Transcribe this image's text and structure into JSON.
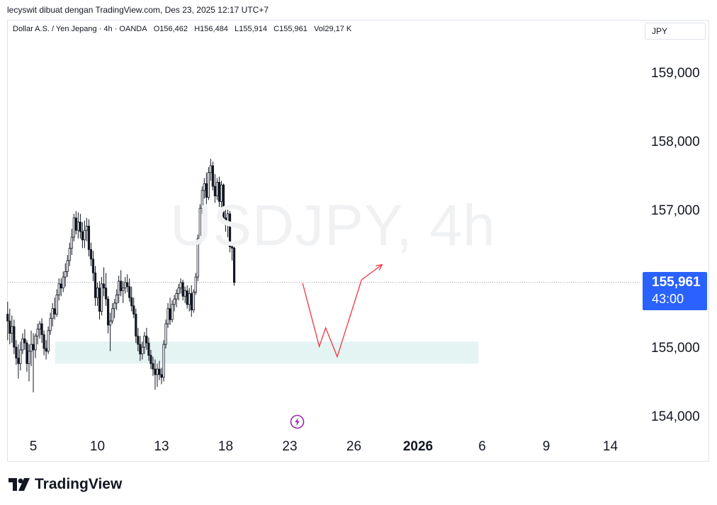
{
  "caption": "lecyswit dibuat dengan TradingView.com, Des 23, 2025 12:17 UTC+7",
  "legend": {
    "symbol": "Dollar A.S. / Yen Jepang · 4h · OANDA",
    "open": "O156,462",
    "high": "H156,484",
    "low": "L155,914",
    "close": "C155,961",
    "volume": "Vol29,17 K"
  },
  "currency_button": "JPY",
  "watermark": "USDJPY, 4h",
  "price_badge": {
    "price": "155,961",
    "countdown": "43:00"
  },
  "logo_text": "TradingView",
  "colors": {
    "candle": "#131722",
    "zone_fill": "#e3f4f2",
    "path": "#f23645",
    "last_price_line": "#9598a1",
    "badge": "#2962ff",
    "event": "#9c27b0"
  },
  "icons": {
    "event": "lightning-icon",
    "logo": "tradingview-logo-icon"
  },
  "chart_data": {
    "type": "candlestick",
    "symbol": "USDJPY",
    "interval": "4h",
    "y_axis": {
      "ticks": [
        159000,
        158000,
        157000,
        155000,
        154000
      ],
      "tick_labels": [
        "159,000",
        "158,000",
        "157,000",
        "155,000",
        "154,000"
      ],
      "range": [
        153500,
        159700
      ]
    },
    "x_axis": {
      "labels": [
        "5",
        "10",
        "13",
        "18",
        "23",
        "26",
        "2026",
        "6",
        "9",
        "14"
      ],
      "label_index": [
        0,
        5,
        10,
        15,
        20,
        25,
        30,
        35,
        40,
        45
      ],
      "range_index": [
        -2,
        49
      ]
    },
    "last_price": 155961,
    "zone": {
      "low": 154780,
      "high": 155100,
      "from_index": 1.7,
      "to_index": 34.7
    },
    "projection_path": [
      {
        "i": 21.0,
        "price": 155950
      },
      {
        "i": 22.3,
        "price": 155030
      },
      {
        "i": 22.8,
        "price": 155300
      },
      {
        "i": 23.7,
        "price": 154880
      },
      {
        "i": 25.6,
        "price": 156000
      },
      {
        "i": 27.2,
        "price": 156220
      }
    ],
    "candles": [
      [
        155.5,
        155.68,
        155.12,
        155.4
      ],
      [
        155.4,
        155.58,
        155.06,
        155.22
      ],
      [
        155.22,
        155.48,
        155.08,
        155.32
      ],
      [
        155.32,
        155.42,
        154.92,
        155.02
      ],
      [
        155.02,
        155.12,
        154.76,
        154.86
      ],
      [
        154.86,
        155.06,
        154.56,
        154.78
      ],
      [
        154.78,
        155.1,
        154.68,
        154.98
      ],
      [
        154.98,
        155.22,
        154.92,
        155.14
      ],
      [
        155.14,
        155.28,
        154.98,
        155.08
      ],
      [
        155.08,
        155.12,
        154.66,
        154.78
      ],
      [
        154.78,
        155.06,
        154.52,
        154.96
      ],
      [
        154.96,
        155.26,
        154.74,
        155.06
      ],
      [
        155.06,
        155.22,
        154.36,
        154.98
      ],
      [
        154.98,
        155.22,
        154.86,
        155.18
      ],
      [
        155.18,
        155.36,
        155.06,
        155.28
      ],
      [
        155.28,
        155.4,
        155.14,
        155.36
      ],
      [
        155.36,
        155.44,
        155.08,
        155.2
      ],
      [
        155.2,
        155.26,
        154.9,
        155.0
      ],
      [
        155.0,
        155.12,
        154.84,
        154.96
      ],
      [
        154.96,
        155.32,
        154.92,
        155.26
      ],
      [
        155.26,
        155.52,
        155.2,
        155.44
      ],
      [
        155.44,
        155.66,
        155.32,
        155.58
      ],
      [
        155.58,
        155.74,
        155.42,
        155.5
      ],
      [
        155.5,
        155.86,
        155.46,
        155.78
      ],
      [
        155.78,
        156.02,
        155.7,
        155.94
      ],
      [
        155.94,
        156.02,
        155.76,
        155.88
      ],
      [
        155.88,
        156.12,
        155.82,
        156.04
      ],
      [
        156.04,
        156.24,
        155.9,
        156.12
      ],
      [
        156.12,
        156.36,
        156.04,
        156.28
      ],
      [
        156.28,
        156.54,
        156.2,
        156.46
      ],
      [
        156.46,
        156.74,
        156.36,
        156.62
      ],
      [
        156.62,
        156.96,
        156.56,
        156.9
      ],
      [
        156.9,
        157.0,
        156.66,
        156.72
      ],
      [
        156.72,
        156.98,
        156.6,
        156.84
      ],
      [
        156.84,
        156.96,
        156.6,
        156.7
      ],
      [
        156.7,
        156.84,
        156.46,
        156.58
      ],
      [
        156.58,
        156.86,
        156.46,
        156.72
      ],
      [
        156.72,
        156.9,
        156.56,
        156.78
      ],
      [
        156.78,
        156.88,
        156.34,
        156.44
      ],
      [
        156.44,
        156.54,
        156.2,
        156.3
      ],
      [
        156.3,
        156.42,
        155.98,
        156.1
      ],
      [
        156.1,
        156.2,
        155.62,
        155.74
      ],
      [
        155.74,
        155.96,
        155.62,
        155.88
      ],
      [
        155.88,
        155.98,
        155.42,
        155.54
      ],
      [
        155.54,
        156.04,
        155.48,
        155.94
      ],
      [
        155.94,
        156.18,
        155.76,
        155.88
      ],
      [
        155.88,
        156.1,
        155.62,
        155.72
      ],
      [
        155.72,
        155.76,
        155.22,
        155.34
      ],
      [
        155.34,
        155.52,
        154.96,
        155.4
      ],
      [
        155.4,
        155.66,
        155.36,
        155.58
      ],
      [
        155.58,
        155.72,
        155.44,
        155.66
      ],
      [
        155.66,
        155.86,
        155.56,
        155.78
      ],
      [
        155.78,
        156.06,
        155.66,
        155.98
      ],
      [
        155.98,
        156.14,
        155.76,
        155.84
      ],
      [
        155.84,
        155.98,
        155.66,
        155.88
      ],
      [
        155.88,
        156.04,
        155.8,
        155.96
      ],
      [
        155.96,
        156.08,
        155.82,
        155.9
      ],
      [
        155.9,
        156.02,
        155.68,
        155.74
      ],
      [
        155.74,
        155.9,
        155.54,
        155.62
      ],
      [
        155.62,
        155.74,
        155.44,
        155.5
      ],
      [
        155.5,
        155.58,
        155.08,
        155.18
      ],
      [
        155.18,
        155.3,
        154.96,
        155.06
      ],
      [
        155.06,
        155.18,
        154.82,
        154.92
      ],
      [
        154.92,
        155.1,
        154.84,
        155.02
      ],
      [
        155.02,
        155.24,
        154.92,
        155.18
      ],
      [
        155.18,
        155.3,
        154.98,
        155.08
      ],
      [
        155.08,
        155.16,
        154.82,
        154.9
      ],
      [
        154.9,
        154.98,
        154.7,
        154.78
      ],
      [
        154.78,
        154.88,
        154.6,
        154.7
      ],
      [
        154.7,
        154.84,
        154.4,
        154.62
      ],
      [
        154.62,
        154.78,
        154.44,
        154.7
      ],
      [
        154.7,
        154.82,
        154.54,
        154.62
      ],
      [
        154.62,
        154.72,
        154.48,
        154.58
      ],
      [
        154.58,
        155.12,
        154.52,
        155.06
      ],
      [
        155.06,
        155.42,
        155.0,
        155.36
      ],
      [
        155.36,
        155.66,
        155.3,
        155.58
      ],
      [
        155.58,
        155.74,
        155.34,
        155.42
      ],
      [
        155.42,
        155.7,
        155.38,
        155.64
      ],
      [
        155.64,
        155.78,
        155.54,
        155.72
      ],
      [
        155.72,
        155.86,
        155.6,
        155.8
      ],
      [
        155.8,
        155.94,
        155.7,
        155.88
      ],
      [
        155.88,
        156.02,
        155.8,
        155.96
      ],
      [
        155.96,
        156.0,
        155.7,
        155.76
      ],
      [
        155.76,
        155.9,
        155.66,
        155.84
      ],
      [
        155.84,
        155.92,
        155.58,
        155.64
      ],
      [
        155.64,
        155.88,
        155.54,
        155.8
      ],
      [
        155.8,
        155.92,
        155.46,
        155.56
      ],
      [
        155.56,
        155.86,
        155.52,
        155.82
      ],
      [
        155.82,
        156.1,
        155.78,
        156.04
      ],
      [
        156.04,
        156.66,
        155.98,
        156.6
      ],
      [
        156.6,
        157.1,
        156.52,
        157.04
      ],
      [
        157.04,
        157.36,
        156.96,
        157.3
      ],
      [
        157.3,
        157.48,
        157.18,
        157.4
      ],
      [
        157.4,
        157.56,
        157.1,
        157.2
      ],
      [
        157.2,
        157.64,
        157.16,
        157.56
      ],
      [
        157.56,
        157.76,
        157.44,
        157.66
      ],
      [
        157.66,
        157.72,
        157.3,
        157.36
      ],
      [
        157.36,
        157.54,
        157.12,
        157.22
      ],
      [
        157.22,
        157.48,
        157.16,
        157.42
      ],
      [
        157.42,
        157.5,
        157.06,
        157.14
      ],
      [
        157.14,
        157.44,
        157.0,
        157.38
      ],
      [
        157.38,
        157.4,
        156.82,
        156.9
      ],
      [
        156.9,
        157.06,
        156.7,
        156.8
      ],
      [
        156.8,
        157.02,
        156.62,
        156.96
      ],
      [
        156.96,
        157.0,
        156.4,
        156.48
      ],
      [
        156.48,
        156.52,
        156.28,
        156.46
      ],
      [
        156.462,
        156.484,
        155.914,
        155.961
      ]
    ]
  }
}
